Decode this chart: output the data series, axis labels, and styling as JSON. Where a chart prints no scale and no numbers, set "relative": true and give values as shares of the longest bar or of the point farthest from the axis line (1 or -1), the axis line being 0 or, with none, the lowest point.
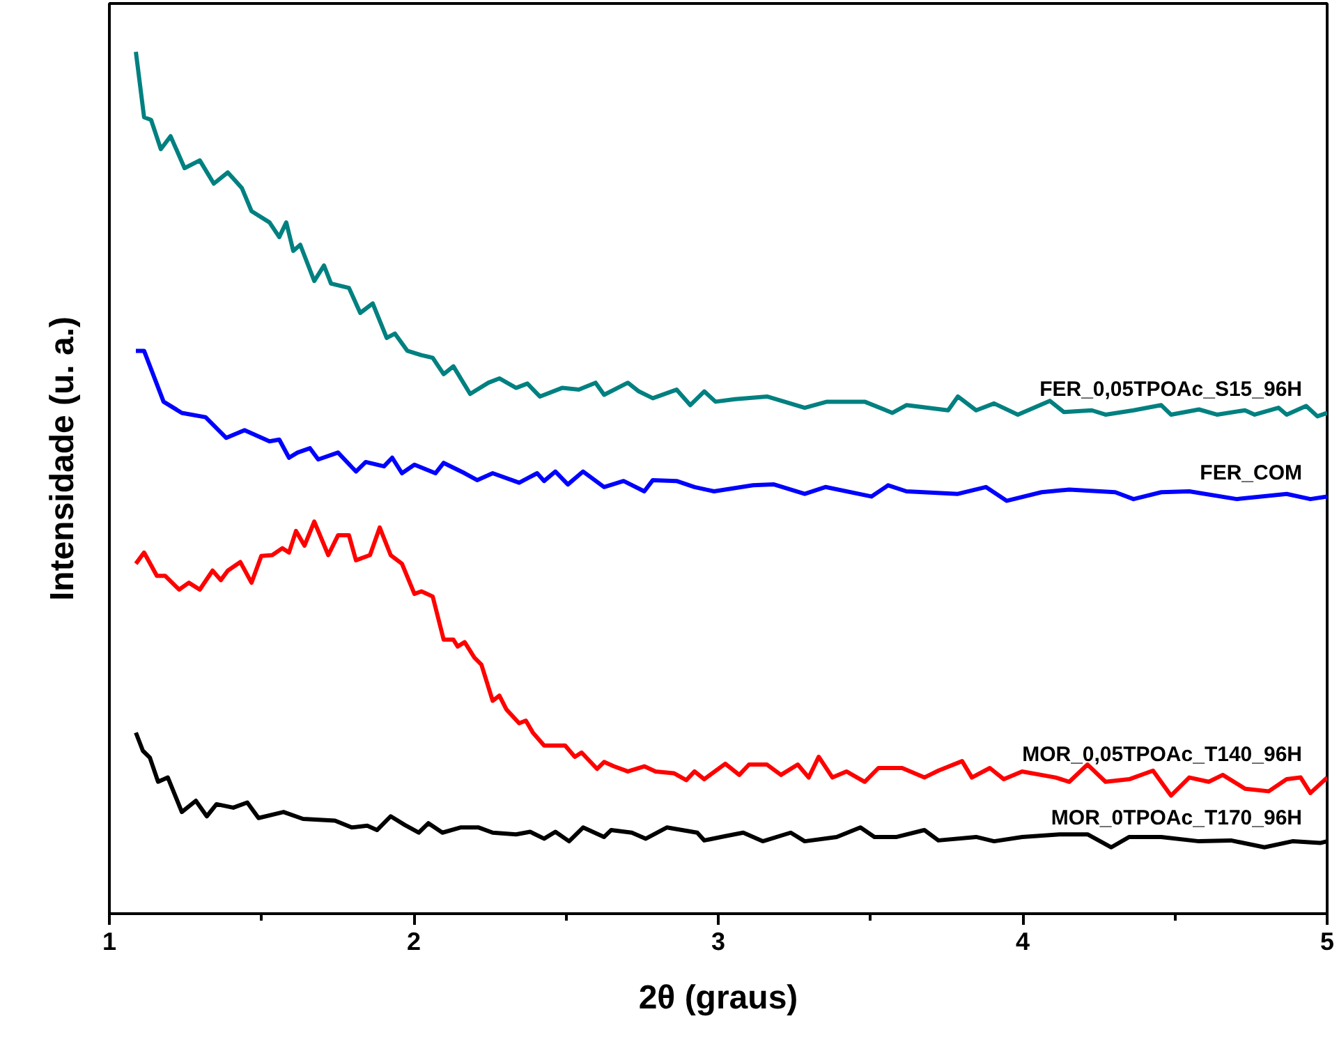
{
  "chart_data": {
    "type": "line",
    "xlabel": "2θ (graus)",
    "ylabel": "Intensidade (u. a.)",
    "relative": true,
    "xlim": [
      1,
      5
    ],
    "xticks": [
      1,
      2,
      3,
      4,
      5
    ],
    "grid": false,
    "line_style": "solid",
    "marker": "none",
    "series": [
      {
        "name": "FER_0,05TPOAc_S15_96H",
        "color": "#008080",
        "x": [
          1.087,
          1.114,
          1.137,
          1.169,
          1.201,
          1.247,
          1.297,
          1.343,
          1.389,
          1.435,
          1.467,
          1.526,
          1.558,
          1.581,
          1.604,
          1.627,
          1.673,
          1.705,
          1.728,
          1.787,
          1.824,
          1.865,
          1.911,
          1.938,
          1.979,
          2.025,
          2.062,
          2.098,
          2.13,
          2.185,
          2.245,
          2.281,
          2.336,
          2.373,
          2.414,
          2.487,
          2.542,
          2.597,
          2.625,
          2.703,
          2.739,
          2.785,
          2.863,
          2.908,
          2.954,
          2.991,
          3.055,
          3.16,
          3.284,
          3.357,
          3.481,
          3.572,
          3.618,
          3.755,
          3.787,
          3.847,
          3.906,
          3.984,
          4.089,
          4.135,
          4.227,
          4.272,
          4.364,
          4.455,
          4.487,
          4.579,
          4.638,
          4.73,
          4.762,
          4.84,
          4.867,
          4.931,
          4.968,
          5.0
        ],
        "values": [
          1.0,
          0.924,
          0.921,
          0.887,
          0.902,
          0.865,
          0.874,
          0.847,
          0.86,
          0.842,
          0.815,
          0.802,
          0.785,
          0.802,
          0.769,
          0.776,
          0.734,
          0.752,
          0.731,
          0.726,
          0.697,
          0.708,
          0.668,
          0.673,
          0.653,
          0.648,
          0.645,
          0.626,
          0.635,
          0.603,
          0.616,
          0.621,
          0.61,
          0.615,
          0.6,
          0.61,
          0.608,
          0.616,
          0.602,
          0.616,
          0.606,
          0.598,
          0.608,
          0.59,
          0.606,
          0.594,
          0.597,
          0.6,
          0.587,
          0.594,
          0.594,
          0.581,
          0.59,
          0.584,
          0.6,
          0.584,
          0.592,
          0.579,
          0.595,
          0.582,
          0.584,
          0.579,
          0.584,
          0.59,
          0.579,
          0.585,
          0.579,
          0.584,
          0.579,
          0.587,
          0.579,
          0.589,
          0.577,
          0.581
        ]
      },
      {
        "name": "FER_COM",
        "color": "#0000ff",
        "x": [
          1.087,
          1.114,
          1.178,
          1.238,
          1.316,
          1.384,
          1.444,
          1.526,
          1.558,
          1.59,
          1.618,
          1.659,
          1.686,
          1.751,
          1.81,
          1.842,
          1.902,
          1.929,
          1.961,
          2.002,
          2.071,
          2.098,
          2.167,
          2.208,
          2.259,
          2.346,
          2.405,
          2.428,
          2.465,
          2.506,
          2.556,
          2.625,
          2.689,
          2.757,
          2.785,
          2.863,
          2.922,
          2.986,
          3.114,
          3.183,
          3.284,
          3.352,
          3.503,
          3.558,
          3.618,
          3.787,
          3.879,
          3.947,
          4.062,
          4.153,
          4.304,
          4.364,
          4.455,
          4.547,
          4.703,
          4.867,
          4.945,
          5.0
        ],
        "values": [
          0.653,
          0.653,
          0.594,
          0.581,
          0.576,
          0.552,
          0.561,
          0.548,
          0.55,
          0.529,
          0.535,
          0.54,
          0.527,
          0.535,
          0.513,
          0.524,
          0.519,
          0.529,
          0.511,
          0.521,
          0.511,
          0.523,
          0.511,
          0.503,
          0.511,
          0.5,
          0.511,
          0.502,
          0.513,
          0.498,
          0.513,
          0.495,
          0.502,
          0.49,
          0.503,
          0.502,
          0.495,
          0.49,
          0.497,
          0.498,
          0.487,
          0.495,
          0.484,
          0.497,
          0.49,
          0.487,
          0.495,
          0.479,
          0.489,
          0.492,
          0.489,
          0.481,
          0.489,
          0.49,
          0.481,
          0.487,
          0.481,
          0.484
        ]
      },
      {
        "name": "MOR_0,05TPOAc_T140_96H",
        "color": "#ff0000",
        "x": [
          1.087,
          1.114,
          1.156,
          1.183,
          1.229,
          1.261,
          1.297,
          1.339,
          1.366,
          1.389,
          1.43,
          1.467,
          1.499,
          1.535,
          1.568,
          1.59,
          1.613,
          1.641,
          1.673,
          1.719,
          1.751,
          1.787,
          1.81,
          1.856,
          1.888,
          1.924,
          1.961,
          2.002,
          2.025,
          2.062,
          2.098,
          2.13,
          2.144,
          2.167,
          2.199,
          2.222,
          2.259,
          2.281,
          2.304,
          2.346,
          2.368,
          2.391,
          2.428,
          2.497,
          2.529,
          2.551,
          2.602,
          2.625,
          2.657,
          2.703,
          2.757,
          2.794,
          2.854,
          2.895,
          2.922,
          2.954,
          3.023,
          3.069,
          3.101,
          3.16,
          3.206,
          3.261,
          3.297,
          3.33,
          3.375,
          3.421,
          3.481,
          3.526,
          3.604,
          3.677,
          3.723,
          3.801,
          3.833,
          3.892,
          3.938,
          3.998,
          4.108,
          4.153,
          4.213,
          4.272,
          4.35,
          4.428,
          4.487,
          4.547,
          4.611,
          4.657,
          4.73,
          4.808,
          4.867,
          4.913,
          4.945,
          5.0
        ],
        "values": [
          0.406,
          0.419,
          0.392,
          0.392,
          0.376,
          0.384,
          0.376,
          0.398,
          0.387,
          0.398,
          0.408,
          0.384,
          0.415,
          0.416,
          0.424,
          0.419,
          0.444,
          0.427,
          0.455,
          0.416,
          0.439,
          0.439,
          0.41,
          0.416,
          0.448,
          0.416,
          0.406,
          0.371,
          0.374,
          0.368,
          0.318,
          0.318,
          0.31,
          0.315,
          0.297,
          0.289,
          0.247,
          0.253,
          0.237,
          0.221,
          0.224,
          0.21,
          0.195,
          0.195,
          0.182,
          0.187,
          0.168,
          0.176,
          0.171,
          0.165,
          0.171,
          0.165,
          0.163,
          0.155,
          0.165,
          0.156,
          0.174,
          0.161,
          0.173,
          0.173,
          0.161,
          0.173,
          0.158,
          0.182,
          0.158,
          0.165,
          0.153,
          0.169,
          0.169,
          0.158,
          0.166,
          0.177,
          0.158,
          0.169,
          0.156,
          0.165,
          0.158,
          0.153,
          0.173,
          0.153,
          0.156,
          0.166,
          0.137,
          0.158,
          0.153,
          0.161,
          0.145,
          0.142,
          0.156,
          0.158,
          0.14,
          0.158
        ]
      },
      {
        "name": "MOR_0TPOAc_T170_96H",
        "color": "#000000",
        "x": [
          1.087,
          1.11,
          1.133,
          1.16,
          1.192,
          1.238,
          1.284,
          1.32,
          1.352,
          1.407,
          1.453,
          1.49,
          1.572,
          1.636,
          1.741,
          1.796,
          1.847,
          1.879,
          1.924,
          1.97,
          2.016,
          2.048,
          2.094,
          2.153,
          2.213,
          2.259,
          2.336,
          2.382,
          2.428,
          2.465,
          2.51,
          2.556,
          2.625,
          2.648,
          2.716,
          2.762,
          2.831,
          2.931,
          2.954,
          3.023,
          3.082,
          3.146,
          3.238,
          3.284,
          3.389,
          3.467,
          3.513,
          3.586,
          3.677,
          3.723,
          3.847,
          3.906,
          3.998,
          4.121,
          4.213,
          4.291,
          4.35,
          4.455,
          4.579,
          4.684,
          4.794,
          4.886,
          4.977,
          5.0
        ],
        "values": [
          0.21,
          0.189,
          0.181,
          0.153,
          0.158,
          0.118,
          0.131,
          0.113,
          0.127,
          0.123,
          0.129,
          0.111,
          0.118,
          0.11,
          0.108,
          0.1,
          0.102,
          0.097,
          0.113,
          0.103,
          0.094,
          0.105,
          0.094,
          0.1,
          0.1,
          0.094,
          0.092,
          0.095,
          0.087,
          0.095,
          0.084,
          0.1,
          0.089,
          0.097,
          0.094,
          0.087,
          0.1,
          0.094,
          0.085,
          0.09,
          0.094,
          0.084,
          0.094,
          0.084,
          0.089,
          0.1,
          0.089,
          0.089,
          0.097,
          0.085,
          0.089,
          0.084,
          0.089,
          0.092,
          0.092,
          0.077,
          0.089,
          0.089,
          0.084,
          0.085,
          0.077,
          0.084,
          0.082,
          0.084
        ]
      }
    ]
  }
}
